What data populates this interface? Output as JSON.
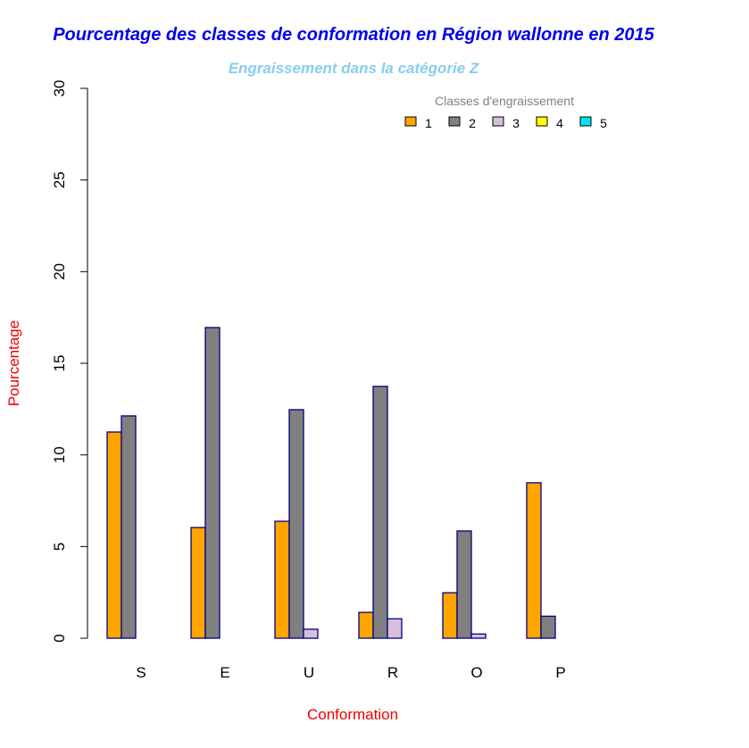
{
  "chart_data": {
    "type": "bar",
    "title": "Pourcentage des classes de conformation en Région wallonne en 2015",
    "subtitle": "Engraissement dans la catégorie Z",
    "xlabel": "Conformation",
    "ylabel": "Pourcentage",
    "ylim": [
      0,
      30
    ],
    "yticks": [
      "0",
      "5",
      "10",
      "15",
      "20",
      "25",
      "30"
    ],
    "categories": [
      "S",
      "E",
      "U",
      "R",
      "O",
      "P"
    ],
    "legend": {
      "title": "Classes d'engraissement",
      "placement": "top-right"
    },
    "series": [
      {
        "name": "1",
        "color": "#FFA500",
        "values": [
          11.25,
          6.04,
          6.38,
          1.41,
          2.48,
          8.48
        ]
      },
      {
        "name": "2",
        "color": "#808080",
        "values": [
          12.13,
          16.95,
          12.47,
          13.74,
          5.85,
          1.2
        ]
      },
      {
        "name": "3",
        "color": "#D8BFD8",
        "values": [
          0,
          0,
          0.49,
          1.06,
          0.23,
          0
        ]
      },
      {
        "name": "4",
        "color": "#FFFF00",
        "values": [
          0,
          0,
          0,
          0,
          0,
          0
        ]
      },
      {
        "name": "5",
        "color": "#00E5EE",
        "values": [
          0,
          0,
          0,
          0,
          0,
          0
        ]
      }
    ]
  }
}
